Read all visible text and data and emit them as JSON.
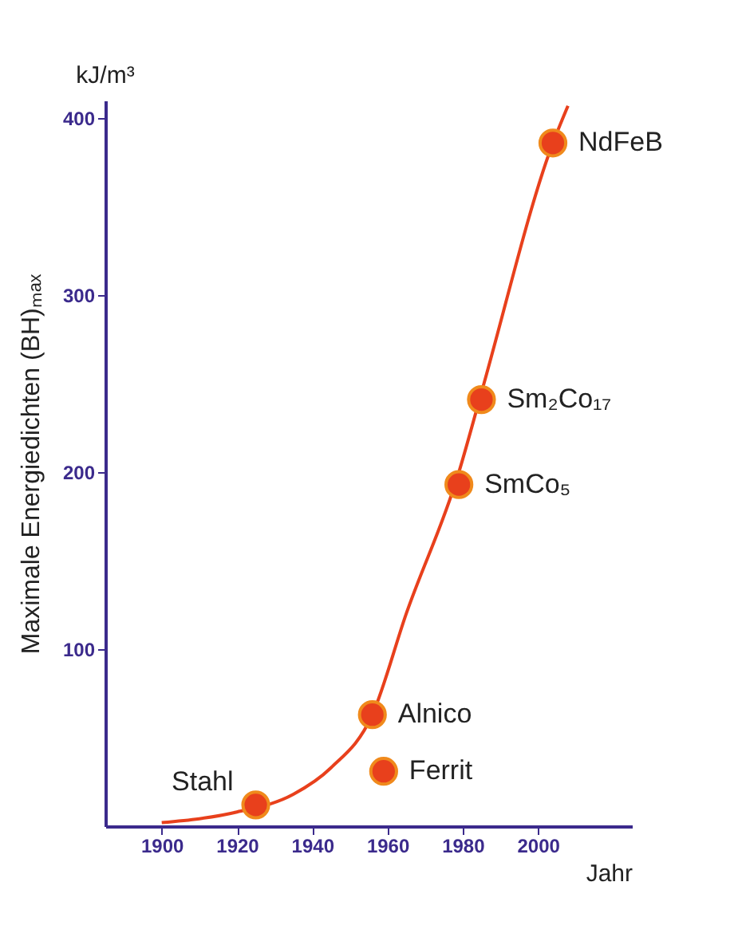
{
  "chart_data": {
    "type": "line",
    "xlabel": "Jahr",
    "ylabel": "Maximale Energiedichten (BH)ₘₐₓ",
    "xlim": [
      1885,
      2025
    ],
    "ylim": [
      0,
      410
    ],
    "xticks": [
      1900,
      1920,
      1940,
      1960,
      1980,
      2000
    ],
    "yticks": [
      100,
      200,
      300,
      400
    ],
    "series": [
      {
        "color": "#e8401c",
        "x": [
          1900,
          1920,
          1935,
          1945,
          1956,
          1965,
          1979,
          1985,
          2004,
          2008
        ],
        "values": [
          2,
          8,
          18,
          33,
          63,
          120,
          200,
          245,
          386,
          407
        ]
      },
      {
        "type": "scatter",
        "color": "#e8401c",
        "x": [
          1925,
          1956,
          1959,
          1979,
          1985,
          2004
        ],
        "values": [
          12,
          63,
          31,
          193,
          241,
          386
        ]
      }
    ],
    "annotations": [
      "kJ/m³",
      {
        "text": "Stahl",
        "x": 1925,
        "y": 12
      },
      {
        "text": "Alnico",
        "x": 1956,
        "y": 63
      },
      {
        "text": "Ferrit",
        "x": 1959,
        "y": 31
      },
      {
        "text": "SmCo₅",
        "x": 1979,
        "y": 193
      },
      {
        "text": "Sm₂Co₁₇",
        "x": 1985,
        "y": 241
      },
      {
        "text": "NdFeB",
        "x": 2004,
        "y": 386
      }
    ]
  }
}
